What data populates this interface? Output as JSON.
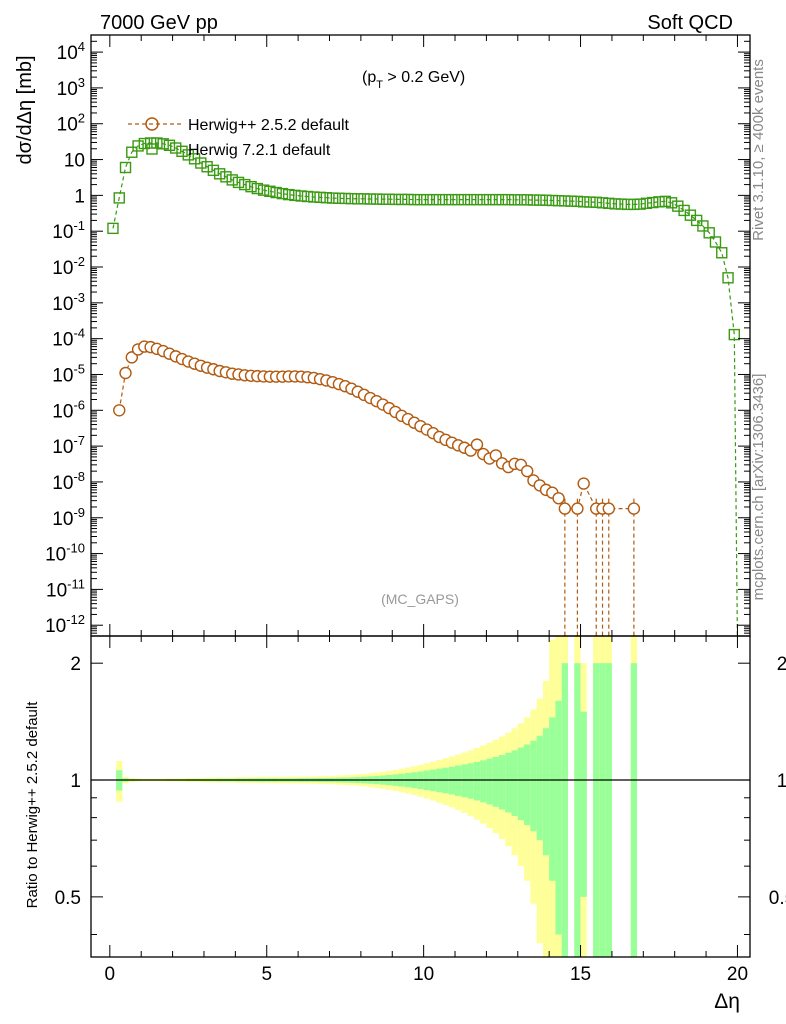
{
  "header": {
    "left": "7000 GeV pp",
    "right": "Soft QCD"
  },
  "side_labels": {
    "rivet": "Rivet 3.1.10, ≥ 400k events",
    "mcplots": "mcplots.cern.ch [arXiv:1306.3436]"
  },
  "chart_data": [
    {
      "type": "scatter",
      "panel": "main",
      "title": "(p_T > 0.2 GeV)",
      "watermark": "(MC_GAPS)",
      "xlabel": "Δη",
      "ylabel": "dσ/dΔη [mb]",
      "xlim": [
        -0.6,
        20.4
      ],
      "ylim": [
        5e-13,
        30000
      ],
      "yscale": "log",
      "y_ticks": [
        "10^-12",
        "10^-11",
        "10^-10",
        "10^-9",
        "10^-8",
        "10^-7",
        "10^-6",
        "10^-5",
        "10^-4",
        "10^-3",
        "10^-2",
        "10^-1",
        "1",
        "10",
        "10^2",
        "10^3",
        "10^4"
      ],
      "legend_position": "top-left",
      "series": [
        {
          "name": "Herwig++ 2.5.2 default",
          "color": "#b25a10",
          "marker": "circle",
          "points": [
            [
              0.3,
              1e-06
            ],
            [
              0.5,
              1.1e-05
            ],
            [
              0.7,
              3e-05
            ],
            [
              0.9,
              5e-05
            ],
            [
              1.1,
              6e-05
            ],
            [
              1.3,
              5.8e-05
            ],
            [
              1.5,
              5.2e-05
            ],
            [
              1.7,
              4.5e-05
            ],
            [
              1.9,
              3.8e-05
            ],
            [
              2.1,
              3.2e-05
            ],
            [
              2.3,
              2.7e-05
            ],
            [
              2.5,
              2.3e-05
            ],
            [
              2.7,
              2e-05
            ],
            [
              2.9,
              1.75e-05
            ],
            [
              3.1,
              1.55e-05
            ],
            [
              3.3,
              1.4e-05
            ],
            [
              3.5,
              1.25e-05
            ],
            [
              3.7,
              1.15e-05
            ],
            [
              3.9,
              1.05e-05
            ],
            [
              4.1,
              1e-05
            ],
            [
              4.3,
              9.5e-06
            ],
            [
              4.5,
              9.2e-06
            ],
            [
              4.7,
              9e-06
            ],
            [
              4.9,
              8.8e-06
            ],
            [
              5.1,
              8.7e-06
            ],
            [
              5.3,
              8.7e-06
            ],
            [
              5.5,
              8.7e-06
            ],
            [
              5.7,
              8.8e-06
            ],
            [
              5.9,
              8.8e-06
            ],
            [
              6.1,
              8.7e-06
            ],
            [
              6.3,
              8.4e-06
            ],
            [
              6.5,
              8e-06
            ],
            [
              6.7,
              7.4e-06
            ],
            [
              6.9,
              6.8e-06
            ],
            [
              7.1,
              6.1e-06
            ],
            [
              7.3,
              5.4e-06
            ],
            [
              7.5,
              4.7e-06
            ],
            [
              7.7,
              4e-06
            ],
            [
              7.9,
              3.3e-06
            ],
            [
              8.1,
              2.7e-06
            ],
            [
              8.3,
              2.2e-06
            ],
            [
              8.5,
              1.8e-06
            ],
            [
              8.7,
              1.45e-06
            ],
            [
              8.9,
              1.15e-06
            ],
            [
              9.1,
              9e-07
            ],
            [
              9.3,
              7e-07
            ],
            [
              9.5,
              5.7e-07
            ],
            [
              9.7,
              4.5e-07
            ],
            [
              9.9,
              3.6e-07
            ],
            [
              10.1,
              2.9e-07
            ],
            [
              10.3,
              2.3e-07
            ],
            [
              10.5,
              1.8e-07
            ],
            [
              10.7,
              1.5e-07
            ],
            [
              10.9,
              1.25e-07
            ],
            [
              11.1,
              1.05e-07
            ],
            [
              11.3,
              9e-08
            ],
            [
              11.5,
              7.5e-08
            ],
            [
              11.7,
              1.1e-07
            ],
            [
              11.9,
              6e-08
            ],
            [
              12.1,
              4.5e-08
            ],
            [
              12.3,
              5.5e-08
            ],
            [
              12.5,
              3.3e-08
            ],
            [
              12.7,
              2.6e-08
            ],
            [
              12.9,
              3.2e-08
            ],
            [
              13.1,
              3e-08
            ],
            [
              13.3,
              2e-08
            ],
            [
              13.5,
              1.1e-08
            ],
            [
              13.7,
              8e-09
            ],
            [
              13.9,
              6e-09
            ],
            [
              14.1,
              5e-09
            ],
            [
              14.3,
              3.5e-09
            ],
            [
              14.5,
              1.8e-09
            ],
            [
              14.9,
              1.8e-09
            ],
            [
              15.1,
              9e-09
            ],
            [
              15.5,
              1.8e-09
            ],
            [
              15.7,
              1.8e-09
            ],
            [
              15.9,
              1.8e-09
            ],
            [
              16.7,
              1.8e-09
            ]
          ]
        },
        {
          "name": "Herwig 7.2.1 default",
          "color": "#3a9a12",
          "marker": "square",
          "points": [
            [
              0.1,
              0.12
            ],
            [
              0.3,
              0.85
            ],
            [
              0.5,
              6
            ],
            [
              0.7,
              16
            ],
            [
              0.9,
              24
            ],
            [
              1.1,
              28
            ],
            [
              1.3,
              29
            ],
            [
              1.5,
              29
            ],
            [
              1.7,
              27.5
            ],
            [
              1.9,
              25
            ],
            [
              2.1,
              21
            ],
            [
              2.3,
              17
            ],
            [
              2.5,
              13.5
            ],
            [
              2.7,
              10.5
            ],
            [
              2.9,
              8
            ],
            [
              3.1,
              6.3
            ],
            [
              3.3,
              5
            ],
            [
              3.5,
              4
            ],
            [
              3.7,
              3.3
            ],
            [
              3.9,
              2.7
            ],
            [
              4.1,
              2.3
            ],
            [
              4.3,
              2
            ],
            [
              4.5,
              1.75
            ],
            [
              4.7,
              1.55
            ],
            [
              4.9,
              1.4
            ],
            [
              5.1,
              1.3
            ],
            [
              5.3,
              1.2
            ],
            [
              5.5,
              1.12
            ],
            [
              5.7,
              1.05
            ],
            [
              5.9,
              1
            ],
            [
              6.1,
              0.96
            ],
            [
              6.3,
              0.93
            ],
            [
              6.5,
              0.9
            ],
            [
              6.7,
              0.88
            ],
            [
              6.9,
              0.86
            ],
            [
              7.1,
              0.84
            ],
            [
              7.3,
              0.83
            ],
            [
              7.5,
              0.82
            ],
            [
              7.7,
              0.81
            ],
            [
              7.9,
              0.8
            ],
            [
              8.1,
              0.8
            ],
            [
              8.3,
              0.79
            ],
            [
              8.5,
              0.79
            ],
            [
              8.7,
              0.78
            ],
            [
              8.9,
              0.78
            ],
            [
              9.1,
              0.77
            ],
            [
              9.3,
              0.77
            ],
            [
              9.5,
              0.77
            ],
            [
              9.7,
              0.76
            ],
            [
              9.9,
              0.76
            ],
            [
              10.1,
              0.76
            ],
            [
              10.3,
              0.76
            ],
            [
              10.5,
              0.76
            ],
            [
              10.7,
              0.76
            ],
            [
              10.9,
              0.76
            ],
            [
              11.1,
              0.76
            ],
            [
              11.3,
              0.76
            ],
            [
              11.5,
              0.76
            ],
            [
              11.7,
              0.76
            ],
            [
              11.9,
              0.76
            ],
            [
              12.1,
              0.76
            ],
            [
              12.3,
              0.76
            ],
            [
              12.5,
              0.76
            ],
            [
              12.7,
              0.76
            ],
            [
              12.9,
              0.75
            ],
            [
              13.1,
              0.75
            ],
            [
              13.3,
              0.75
            ],
            [
              13.5,
              0.74
            ],
            [
              13.7,
              0.74
            ],
            [
              13.9,
              0.73
            ],
            [
              14.1,
              0.72
            ],
            [
              14.3,
              0.71
            ],
            [
              14.5,
              0.7
            ],
            [
              14.7,
              0.69
            ],
            [
              14.9,
              0.68
            ],
            [
              15.1,
              0.66
            ],
            [
              15.3,
              0.65
            ],
            [
              15.5,
              0.64
            ],
            [
              15.7,
              0.62
            ],
            [
              15.9,
              0.6
            ],
            [
              16.1,
              0.58
            ],
            [
              16.3,
              0.57
            ],
            [
              16.5,
              0.56
            ],
            [
              16.7,
              0.56
            ],
            [
              16.9,
              0.57
            ],
            [
              17.1,
              0.6
            ],
            [
              17.3,
              0.63
            ],
            [
              17.5,
              0.66
            ],
            [
              17.7,
              0.68
            ],
            [
              17.9,
              0.62
            ],
            [
              18.1,
              0.5
            ],
            [
              18.3,
              0.38
            ],
            [
              18.5,
              0.28
            ],
            [
              18.7,
              0.2
            ],
            [
              18.9,
              0.14
            ],
            [
              19.1,
              0.09
            ],
            [
              19.3,
              0.05
            ],
            [
              19.5,
              0.025
            ],
            [
              19.7,
              0.005
            ],
            [
              19.9,
              0.00013
            ]
          ]
        }
      ]
    },
    {
      "type": "area",
      "panel": "ratio",
      "xlabel": "Δη",
      "ylabel": "Ratio to Herwig++ 2.5.2 default",
      "xlim": [
        -0.6,
        20.4
      ],
      "ylim": [
        0.35,
        2.35
      ],
      "yscale": "log",
      "x_ticks": [
        "0",
        "5",
        "10",
        "15",
        "20"
      ],
      "y_ticks": [
        "0.5",
        "1",
        "2"
      ],
      "reference_line": 1,
      "colors": {
        "inner_band": "#99ff99",
        "outer_band": "#ffff99",
        "reference": "#000000"
      },
      "bands": [
        [
          0.3,
          0.06,
          0.12
        ],
        [
          0.5,
          0.01,
          0.02
        ],
        [
          0.7,
          0.006,
          0.012
        ],
        [
          0.9,
          0.005,
          0.01
        ],
        [
          1.1,
          0.004,
          0.008
        ],
        [
          1.3,
          0.004,
          0.008
        ],
        [
          1.5,
          0.004,
          0.008
        ],
        [
          1.7,
          0.004,
          0.009
        ],
        [
          1.9,
          0.005,
          0.01
        ],
        [
          2.1,
          0.005,
          0.01
        ],
        [
          2.3,
          0.005,
          0.011
        ],
        [
          2.5,
          0.006,
          0.012
        ],
        [
          2.7,
          0.006,
          0.012
        ],
        [
          2.9,
          0.006,
          0.013
        ],
        [
          3.1,
          0.007,
          0.014
        ],
        [
          3.3,
          0.007,
          0.014
        ],
        [
          3.5,
          0.008,
          0.015
        ],
        [
          3.7,
          0.008,
          0.015
        ],
        [
          3.9,
          0.008,
          0.016
        ],
        [
          4.1,
          0.009,
          0.017
        ],
        [
          4.3,
          0.009,
          0.017
        ],
        [
          4.5,
          0.009,
          0.018
        ],
        [
          4.7,
          0.01,
          0.018
        ],
        [
          4.9,
          0.01,
          0.019
        ],
        [
          5.1,
          0.01,
          0.019
        ],
        [
          5.3,
          0.01,
          0.02
        ],
        [
          5.5,
          0.01,
          0.02
        ],
        [
          5.7,
          0.01,
          0.02
        ],
        [
          5.9,
          0.01,
          0.02
        ],
        [
          6.1,
          0.011,
          0.021
        ],
        [
          6.3,
          0.011,
          0.021
        ],
        [
          6.5,
          0.011,
          0.022
        ],
        [
          6.7,
          0.012,
          0.023
        ],
        [
          6.9,
          0.012,
          0.024
        ],
        [
          7.1,
          0.013,
          0.025
        ],
        [
          7.3,
          0.014,
          0.027
        ],
        [
          7.5,
          0.015,
          0.029
        ],
        [
          7.7,
          0.016,
          0.031
        ],
        [
          7.9,
          0.018,
          0.034
        ],
        [
          8.1,
          0.02,
          0.037
        ],
        [
          8.3,
          0.022,
          0.041
        ],
        [
          8.5,
          0.024,
          0.045
        ],
        [
          8.7,
          0.027,
          0.05
        ],
        [
          8.9,
          0.03,
          0.056
        ],
        [
          9.1,
          0.034,
          0.062
        ],
        [
          9.3,
          0.038,
          0.07
        ],
        [
          9.5,
          0.042,
          0.077
        ],
        [
          9.7,
          0.047,
          0.085
        ],
        [
          9.9,
          0.052,
          0.094
        ],
        [
          10.1,
          0.058,
          0.104
        ],
        [
          10.3,
          0.064,
          0.115
        ],
        [
          10.5,
          0.07,
          0.126
        ],
        [
          10.7,
          0.076,
          0.138
        ],
        [
          10.9,
          0.082,
          0.15
        ],
        [
          11.1,
          0.09,
          0.163
        ],
        [
          11.3,
          0.097,
          0.177
        ],
        [
          11.5,
          0.105,
          0.193
        ],
        [
          11.7,
          0.114,
          0.21
        ],
        [
          11.9,
          0.124,
          0.228
        ],
        [
          12.1,
          0.135,
          0.248
        ],
        [
          12.3,
          0.147,
          0.27
        ],
        [
          12.5,
          0.16,
          0.295
        ],
        [
          12.7,
          0.175,
          0.325
        ],
        [
          12.9,
          0.192,
          0.36
        ],
        [
          13.1,
          0.212,
          0.4
        ],
        [
          13.3,
          0.235,
          0.45
        ],
        [
          13.5,
          0.262,
          0.52
        ],
        [
          13.7,
          0.3,
          0.62
        ],
        [
          13.9,
          0.36,
          0.8
        ],
        [
          14.1,
          0.45,
          1.3
        ],
        [
          14.3,
          0.6,
          2
        ],
        [
          14.5,
          1,
          2
        ],
        [
          14.9,
          1,
          2
        ],
        [
          15.1,
          0.5,
          1
        ],
        [
          15.5,
          1,
          2
        ],
        [
          15.7,
          1,
          2
        ],
        [
          15.9,
          1,
          2
        ],
        [
          16.7,
          1,
          2
        ]
      ]
    }
  ]
}
